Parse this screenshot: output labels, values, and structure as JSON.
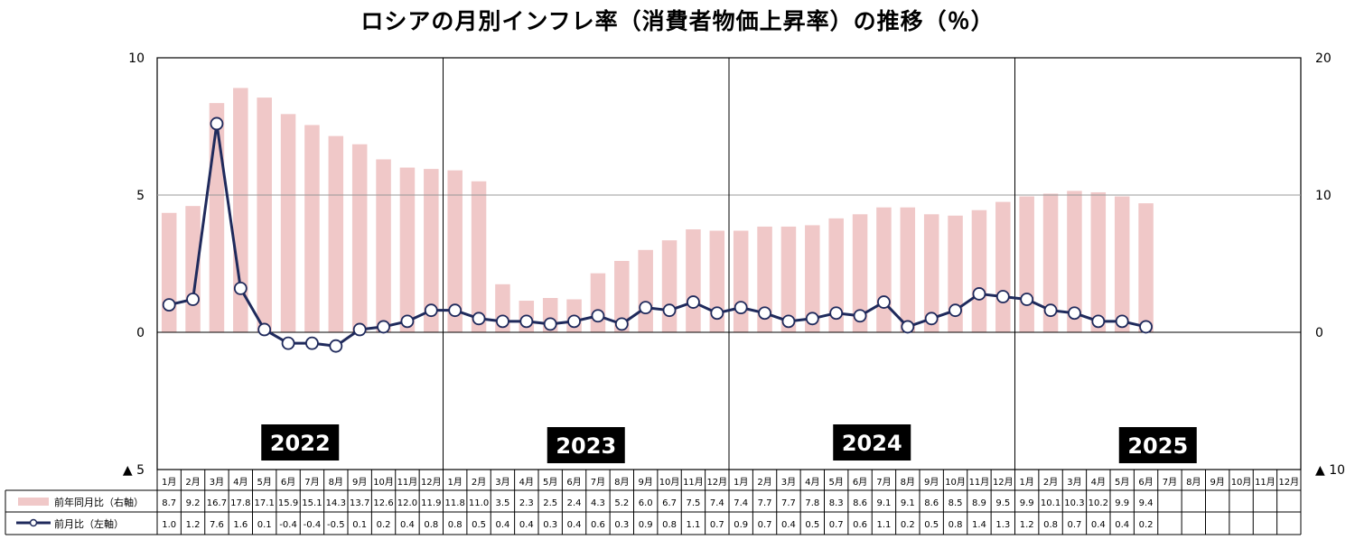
{
  "chart_data": {
    "type": "bar+line",
    "title": "ロシアの月別インフレ率（消費者物価上昇率）の推移（％）",
    "years": [
      "2022",
      "2023",
      "2024",
      "2025"
    ],
    "months": [
      "1月",
      "2月",
      "3月",
      "4月",
      "5月",
      "6月",
      "7月",
      "8月",
      "9月",
      "10月",
      "11月",
      "12月"
    ],
    "left_axis": {
      "ylim": [
        -5,
        10
      ],
      "ticks": [
        "▲ 5",
        "0",
        "5",
        "10"
      ],
      "tick_values": [
        -5,
        0,
        5,
        10
      ]
    },
    "right_axis": {
      "ylim": [
        -10,
        20
      ],
      "ticks": [
        "▲ 10",
        "0",
        "10",
        "20"
      ],
      "tick_values": [
        -10,
        0,
        10,
        20
      ]
    },
    "grid": "horizontal at 5 (left axis) / 10 (right axis); vertical year separators",
    "series": [
      {
        "name": "前年同月比（右軸）",
        "type": "bar",
        "axis": "right",
        "color": "#f0c8c8",
        "values": [
          8.7,
          9.2,
          16.7,
          17.8,
          17.1,
          15.9,
          15.1,
          14.3,
          13.7,
          12.6,
          12.0,
          11.9,
          11.8,
          11.0,
          3.5,
          2.3,
          2.5,
          2.4,
          4.3,
          5.2,
          6.0,
          6.7,
          7.5,
          7.4,
          7.4,
          7.7,
          7.7,
          7.8,
          8.3,
          8.6,
          9.1,
          9.1,
          8.6,
          8.5,
          8.9,
          9.5,
          9.9,
          10.1,
          10.3,
          10.2,
          9.9,
          9.4,
          null,
          null,
          null,
          null,
          null,
          null
        ],
        "labels": [
          "8.7",
          "9.2",
          "16.7",
          "17.8",
          "17.1",
          "15.9",
          "15.1",
          "14.3",
          "13.7",
          "12.6",
          "12.0",
          "11.9",
          "11.8",
          "11.0",
          "3.5",
          "2.3",
          "2.5",
          "2.4",
          "4.3",
          "5.2",
          "6.0",
          "6.7",
          "7.5",
          "7.4",
          "7.4",
          "7.7",
          "7.7",
          "7.8",
          "8.3",
          "8.6",
          "9.1",
          "9.1",
          "8.6",
          "8.5",
          "8.9",
          "9.5",
          "9.9",
          "10.1",
          "10.3",
          "10.2",
          "9.9",
          "9.4",
          "",
          "",
          "",
          "",
          "",
          ""
        ]
      },
      {
        "name": "前月比（左軸）",
        "type": "line",
        "axis": "left",
        "color": "#1f2a5c",
        "values": [
          1.0,
          1.2,
          7.6,
          1.6,
          0.1,
          -0.4,
          -0.4,
          -0.5,
          0.1,
          0.2,
          0.4,
          0.8,
          0.8,
          0.5,
          0.4,
          0.4,
          0.3,
          0.4,
          0.6,
          0.3,
          0.9,
          0.8,
          1.1,
          0.7,
          0.9,
          0.7,
          0.4,
          0.5,
          0.7,
          0.6,
          1.1,
          0.2,
          0.5,
          0.8,
          1.4,
          1.3,
          1.2,
          0.8,
          0.7,
          0.4,
          0.4,
          0.2,
          null,
          null,
          null,
          null,
          null,
          null
        ],
        "labels": [
          "1.0",
          "1.2",
          "7.6",
          "1.6",
          "0.1",
          "-0.4",
          "-0.4",
          "-0.5",
          "0.1",
          "0.2",
          "0.4",
          "0.8",
          "0.8",
          "0.5",
          "0.4",
          "0.4",
          "0.3",
          "0.4",
          "0.6",
          "0.3",
          "0.9",
          "0.8",
          "1.1",
          "0.7",
          "0.9",
          "0.7",
          "0.4",
          "0.5",
          "0.7",
          "0.6",
          "1.1",
          "0.2",
          "0.5",
          "0.8",
          "1.4",
          "1.3",
          "1.2",
          "0.8",
          "0.7",
          "0.4",
          "0.4",
          "0.2",
          "",
          "",
          "",
          "",
          "",
          ""
        ]
      }
    ]
  }
}
